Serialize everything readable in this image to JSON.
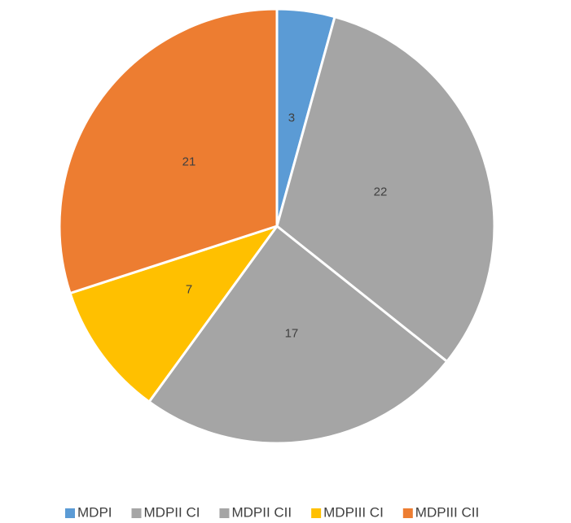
{
  "chart_data": {
    "type": "pie",
    "categories": [
      "MDPI",
      "MDPII CI",
      "MDPII CII",
      "MDPIII CI",
      "MDPIII CII"
    ],
    "values": [
      3,
      22,
      17,
      7,
      21
    ],
    "colors": [
      "#5b9bd5",
      "#a5a5a5",
      "#a5a5a5",
      "#ffc000",
      "#ed7d31"
    ],
    "legend": "bottom"
  }
}
